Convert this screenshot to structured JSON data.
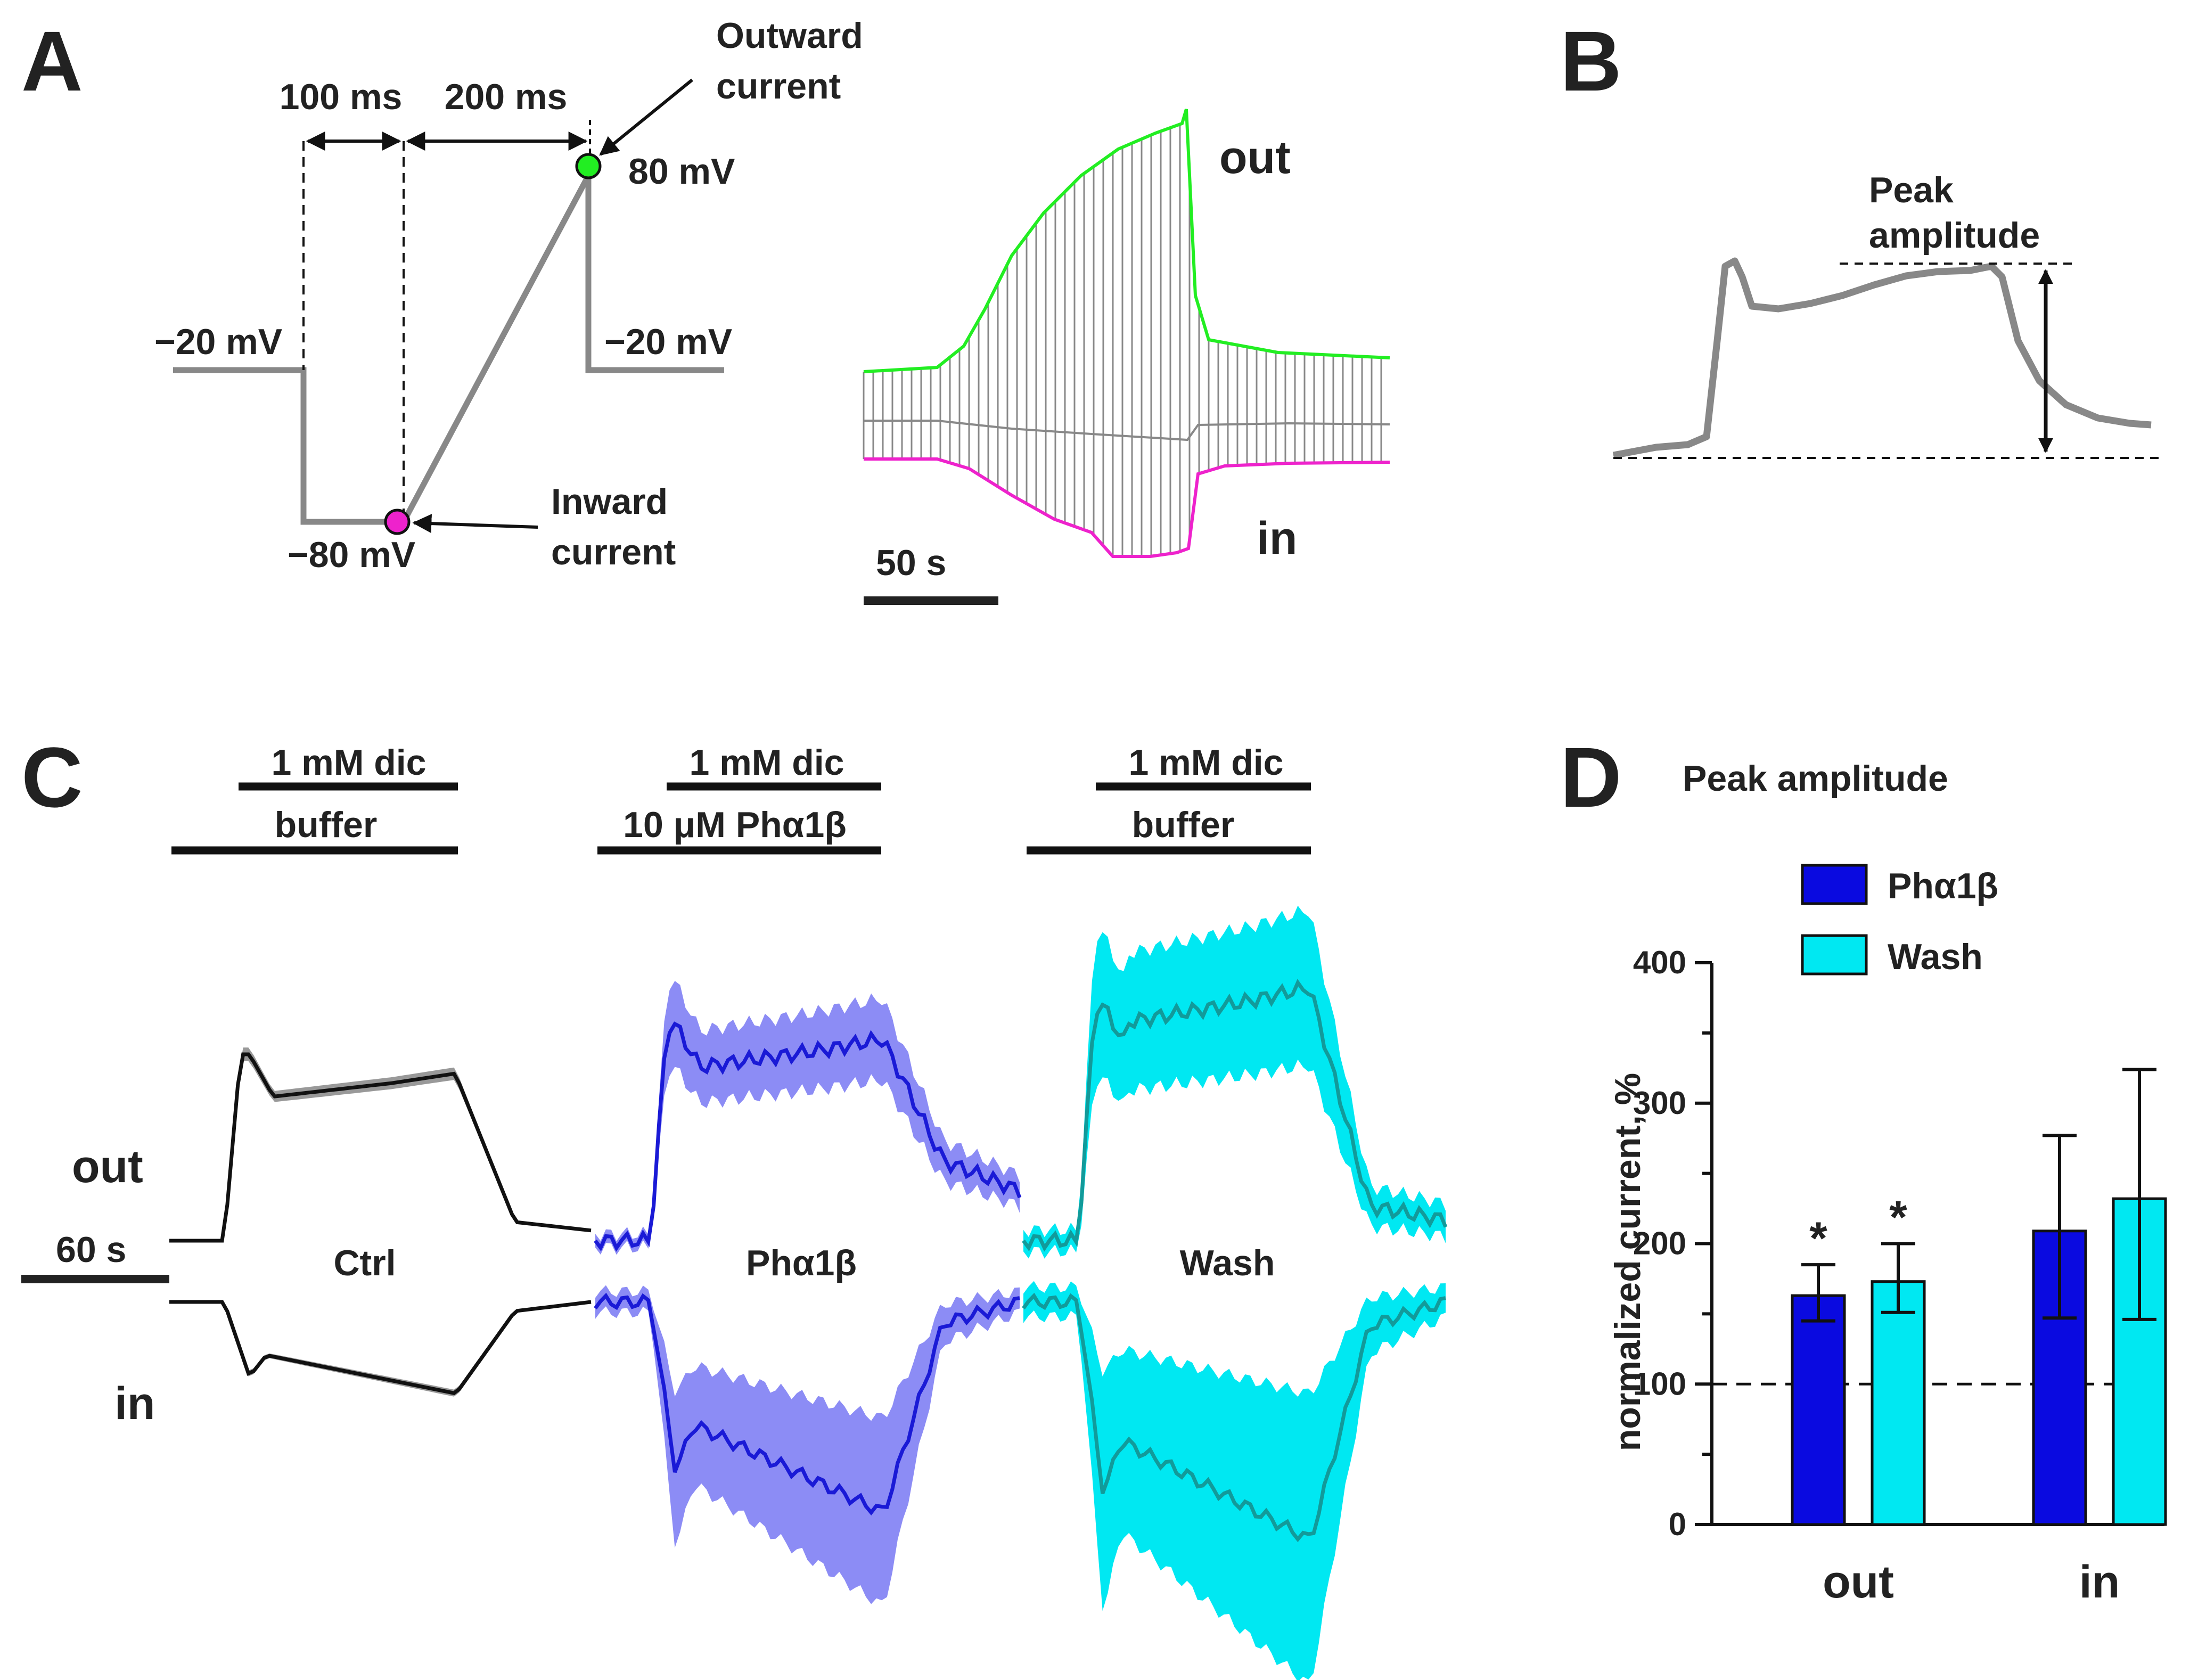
{
  "panels": {
    "A": {
      "label": "A",
      "protocol": {
        "dur1": "100 ms",
        "dur2": "200 ms",
        "hold_left": "−20 mV",
        "hold_right": "−20 mV",
        "v_min": "−80 mV",
        "v_max": "80 mV",
        "outward_label": [
          "Outward",
          "current"
        ],
        "inward_label": [
          "Inward",
          "current"
        ]
      },
      "traces": {
        "out_label": "out",
        "in_label": "in",
        "scalebar": "50 s",
        "out_color": "#22ee22",
        "in_color": "#ee22cc"
      }
    },
    "B": {
      "label": "B",
      "annotation": [
        "Peak",
        "amplitude"
      ]
    },
    "C": {
      "label": "C",
      "out_label": "out",
      "in_label": "in",
      "scalebar": "60 s",
      "groups": [
        {
          "name": "Ctrl",
          "top_bar": "1 mM dic",
          "bottom_bar": "buffer",
          "line": "#111111",
          "band": "#999999"
        },
        {
          "name": "Phα1β",
          "top_bar": "1 mM dic",
          "bottom_bar": "10 μM Phα1β",
          "line": "#1a1ad6",
          "band": "#8c8cf5"
        },
        {
          "name": "Wash",
          "top_bar": "1 mM dic",
          "bottom_bar": "buffer",
          "line": "#129a9a",
          "band": "#00e8f2"
        }
      ]
    },
    "D": {
      "label": "D",
      "title": "Peak amplitude"
    }
  },
  "chart_data": {
    "type": "bar",
    "title": "Peak amplitude",
    "xlabel": "",
    "ylabel": "normalized current, %",
    "ylim": [
      0,
      400
    ],
    "yticks": [
      "0",
      "100",
      "200",
      "300",
      "400"
    ],
    "categories": [
      "out",
      "in"
    ],
    "reference_line": 100,
    "series": [
      {
        "name": "Phα1β",
        "color": "#0a0ae0",
        "values": [
          163,
          209
        ],
        "err_low": [
          18,
          62
        ],
        "err_high": [
          22,
          68
        ],
        "annotations": [
          "*",
          ""
        ]
      },
      {
        "name": "Wash",
        "color": "#00e8f2",
        "values": [
          173,
          232
        ],
        "err_low": [
          22,
          86
        ],
        "err_high": [
          27,
          92
        ],
        "annotations": [
          "*",
          ""
        ]
      }
    ],
    "legend": "top"
  }
}
